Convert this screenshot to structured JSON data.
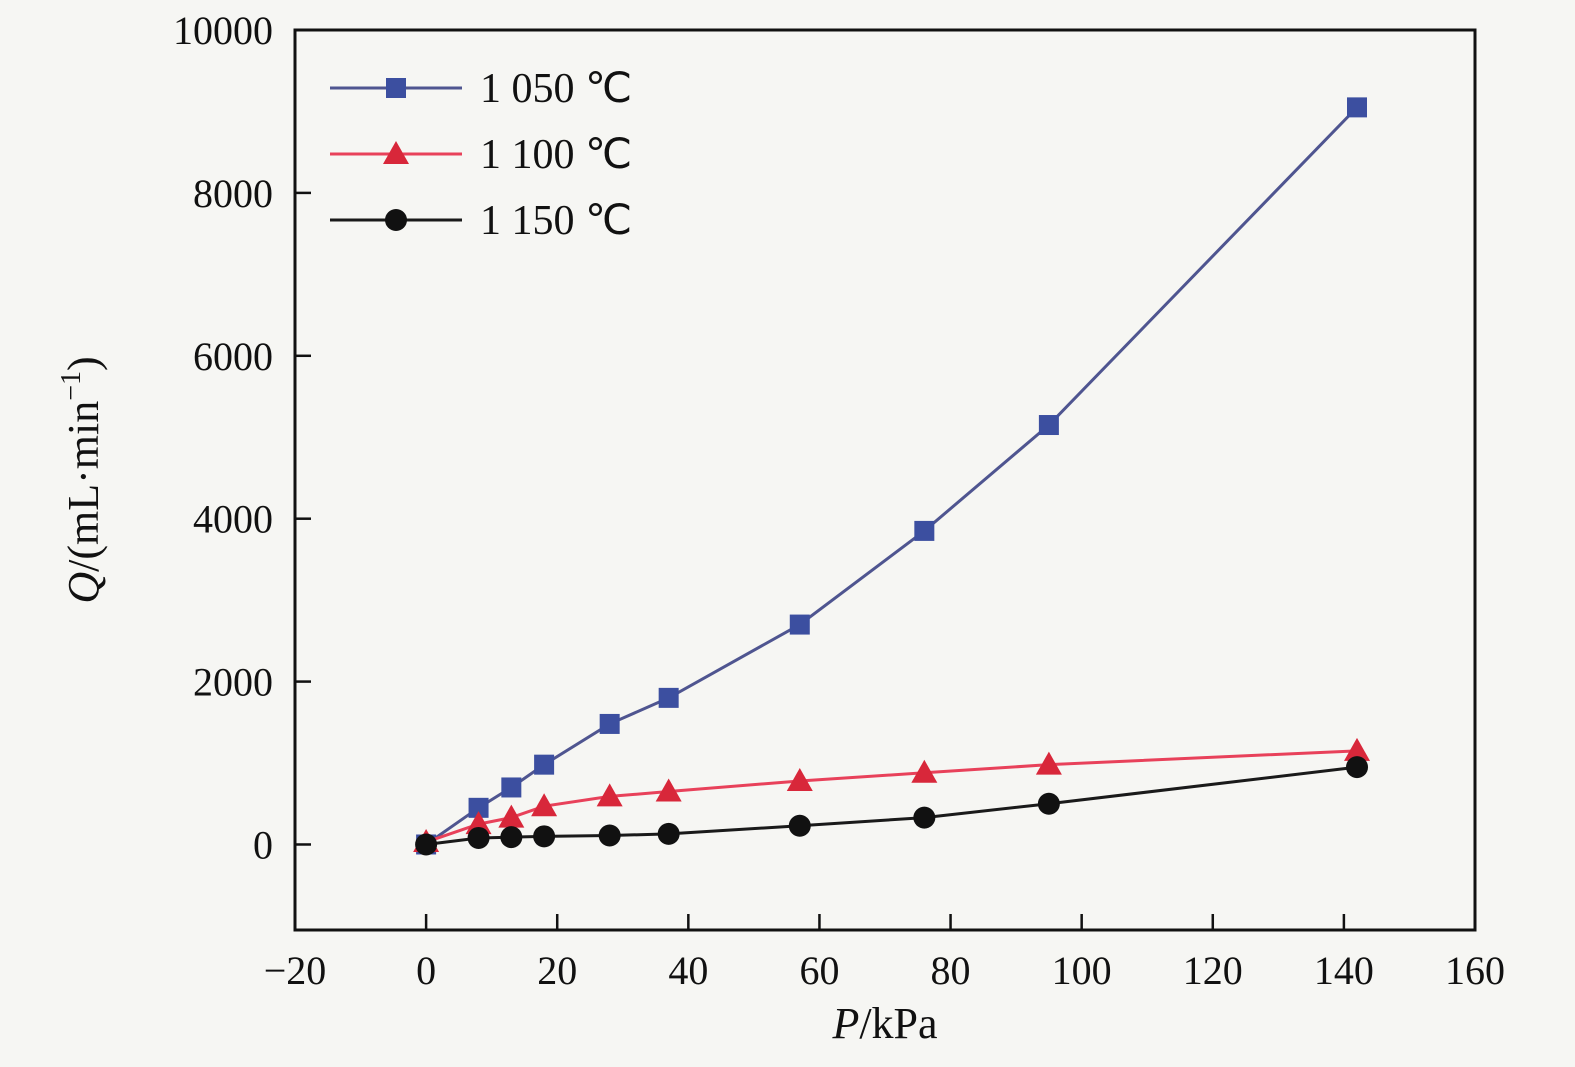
{
  "figure": {
    "background": "#f6f6f3",
    "plot_fill": "#f6f6f3",
    "axis_color": "#111111"
  },
  "chart_data": {
    "type": "line",
    "title": "",
    "xlabel_var": "P",
    "xlabel_rest": "/kPa",
    "ylabel_var": "Q",
    "ylabel_pre": "/(mL·min",
    "ylabel_sup": "−1",
    "ylabel_post": ")",
    "xlim": [
      -20,
      160
    ],
    "ylim": [
      -1050,
      10000
    ],
    "x_ticks": [
      -20,
      0,
      20,
      40,
      60,
      80,
      100,
      120,
      140,
      160
    ],
    "y_ticks": [
      0,
      2000,
      4000,
      6000,
      8000,
      10000
    ],
    "grid": false,
    "legend_position": "top-left",
    "x": [
      0,
      8,
      13,
      18,
      28,
      37,
      57,
      76,
      95,
      142
    ],
    "series": [
      {
        "name": "1 050 ℃",
        "marker": "square",
        "line_color": "#4f5590",
        "marker_color": "#3c4fa0",
        "values": [
          0,
          450,
          700,
          980,
          1480,
          1800,
          2700,
          3850,
          5150,
          9050
        ]
      },
      {
        "name": "1 100 ℃",
        "marker": "triangle",
        "line_color": "#e8415a",
        "marker_color": "#d8273a",
        "values": [
          30,
          250,
          330,
          470,
          590,
          650,
          780,
          880,
          980,
          1150
        ]
      },
      {
        "name": "1 150 ℃",
        "marker": "circle",
        "line_color": "#1a1a1a",
        "marker_color": "#111111",
        "values": [
          0,
          80,
          90,
          100,
          110,
          130,
          230,
          330,
          500,
          950
        ]
      }
    ]
  }
}
